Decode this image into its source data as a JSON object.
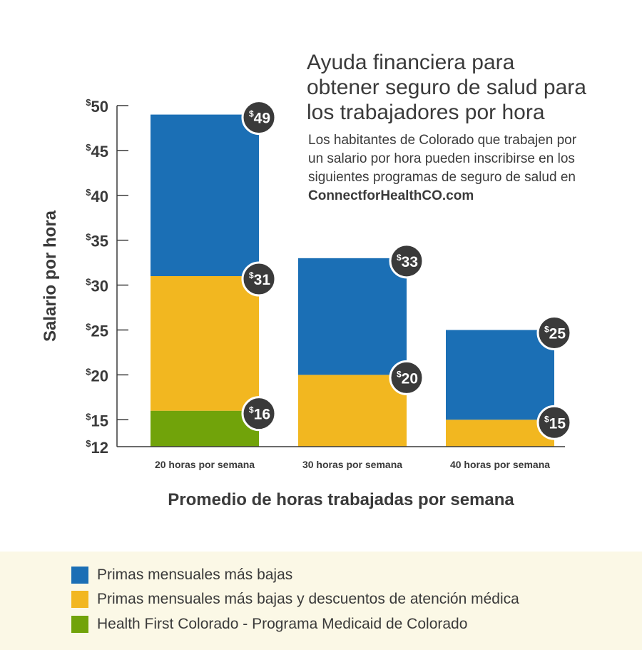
{
  "title_lines": [
    "Ayuda financiera para",
    "obtener seguro de salud para",
    "los trabajadores por hora"
  ],
  "subtitle_lines": [
    "Los habitantes de Colorado que trabajen por",
    "un salario por hora pueden inscribirse en los",
    "siguientes programas de seguro de salud en"
  ],
  "subtitle_site": "ConnectforHealthCO.com",
  "colors": {
    "blue": "#1b6fb5",
    "yellow": "#f2b720",
    "green": "#71a30a",
    "badge": "#3a3a3a",
    "axis": "#3a3a3a",
    "legend_bg": "#fbf8e6"
  },
  "legend": [
    {
      "label": "Primas mensuales más bajas",
      "color": "#1b6fb5"
    },
    {
      "label": "Primas mensuales más bajas y descuentos de atención médica",
      "color": "#f2b720"
    },
    {
      "label": "Health First Colorado - Programa Medicaid de Colorado",
      "color": "#71a30a"
    }
  ],
  "chart_data": {
    "type": "bar",
    "stacked": true,
    "xlabel": "Promedio de horas trabajadas por semana",
    "ylabel": "Salario por hora",
    "ylim": [
      12,
      50
    ],
    "yticks": [
      12,
      15,
      20,
      25,
      30,
      35,
      40,
      45,
      50
    ],
    "currency_symbol": "$",
    "categories": [
      "20 horas por semana",
      "30 horas por semana",
      "40 horas por semana"
    ],
    "bars": [
      {
        "category": "20 horas por semana",
        "segments": [
          {
            "series": "Health First Colorado - Programa Medicaid de Colorado",
            "from": 12,
            "to": 16
          },
          {
            "series": "Primas mensuales más bajas y descuentos de atención médica",
            "from": 16,
            "to": 31
          },
          {
            "series": "Primas mensuales más bajas",
            "from": 31,
            "to": 49
          }
        ],
        "labels": [
          16,
          31,
          49
        ]
      },
      {
        "category": "30 horas por semana",
        "segments": [
          {
            "series": "Primas mensuales más bajas y descuentos de atención médica",
            "from": 12,
            "to": 20
          },
          {
            "series": "Primas mensuales más bajas",
            "from": 20,
            "to": 33
          }
        ],
        "labels": [
          20,
          33
        ]
      },
      {
        "category": "40 horas por semana",
        "segments": [
          {
            "series": "Primas mensuales más bajas y descuentos de atención médica",
            "from": 12,
            "to": 15
          },
          {
            "series": "Primas mensuales más bajas",
            "from": 15,
            "to": 25
          }
        ],
        "labels": [
          15,
          25
        ]
      }
    ]
  }
}
